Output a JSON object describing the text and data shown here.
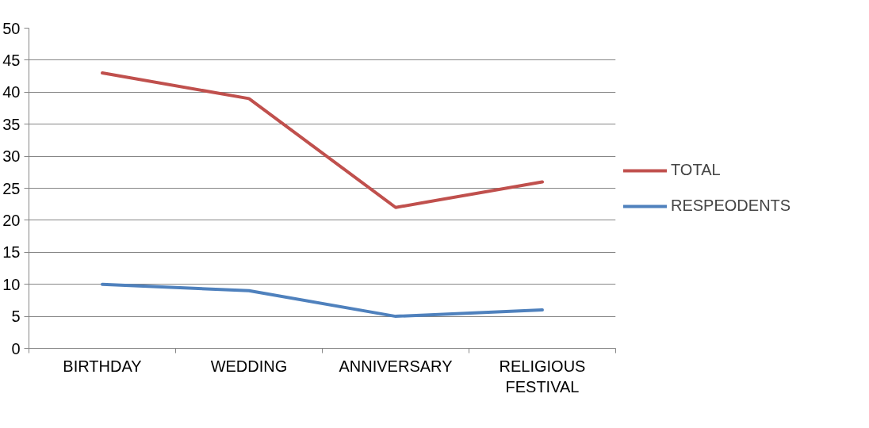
{
  "chart_data": {
    "type": "line",
    "categories": [
      "BIRTHDAY",
      "WEDDING",
      "ANNIVERSARY",
      "RELIGIOUS FESTIVAL"
    ],
    "series": [
      {
        "name": "TOTAL",
        "color": "#c0504d",
        "values": [
          43,
          39,
          22,
          26
        ]
      },
      {
        "name": "RESPEODENTS",
        "color": "#4f81bd",
        "values": [
          10,
          9,
          5,
          6
        ]
      }
    ],
    "ylim": [
      0,
      50
    ],
    "yticks": [
      0,
      5,
      10,
      15,
      20,
      25,
      30,
      35,
      40,
      45,
      50
    ],
    "grid": "y",
    "legend": "right",
    "marker": "none",
    "line_style": "solid"
  }
}
